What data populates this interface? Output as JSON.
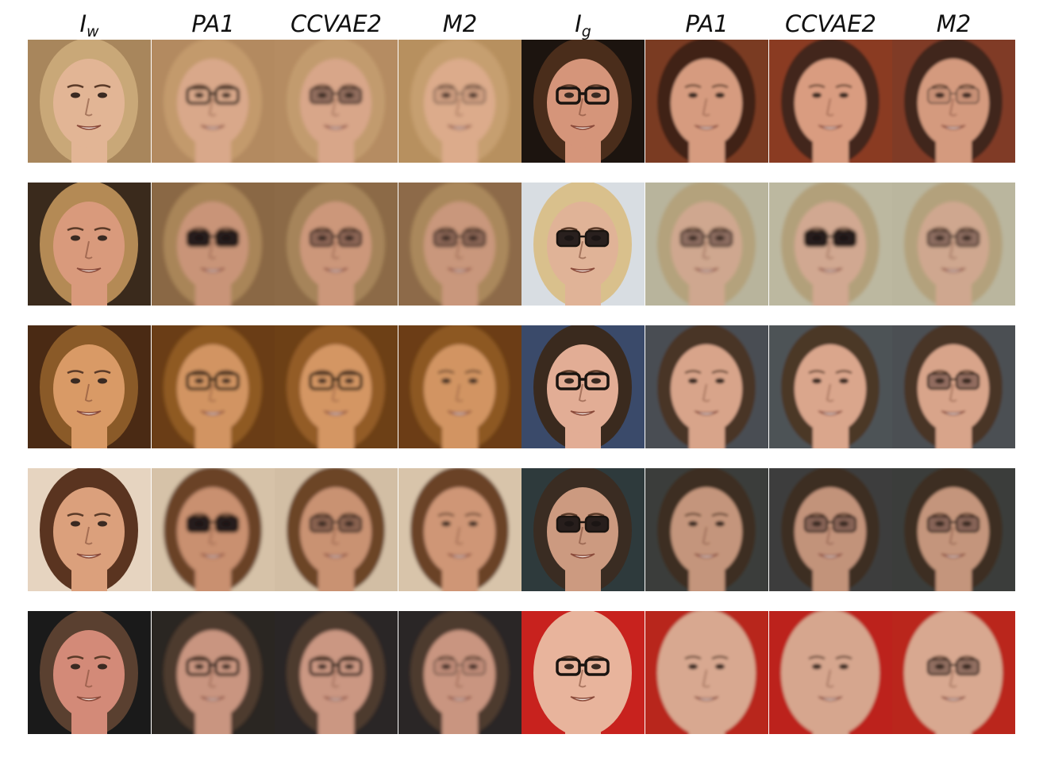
{
  "figure": {
    "column_headers": [
      {
        "main": "I",
        "sub": "w"
      },
      {
        "main": "PA1",
        "sub": ""
      },
      {
        "main": "CCVAE2",
        "sub": ""
      },
      {
        "main": "M2",
        "sub": ""
      },
      {
        "main": "I",
        "sub": "g"
      },
      {
        "main": "PA1",
        "sub": ""
      },
      {
        "main": "CCVAE2",
        "sub": ""
      },
      {
        "main": "M2",
        "sub": ""
      }
    ],
    "rows": [
      {
        "cells": [
          {
            "bg": "#a8865c",
            "hair": "#c9a878",
            "skin": "#e2b595",
            "glasses": "none",
            "blur": 0
          },
          {
            "bg": "#b38a60",
            "hair": "#c39a6c",
            "skin": "#d9a88a",
            "glasses": "dark-frame",
            "blur": 2.2
          },
          {
            "bg": "#b58c62",
            "hair": "#c29b6e",
            "skin": "#d8a689",
            "glasses": "tinted",
            "blur": 2.2
          },
          {
            "bg": "#b7905f",
            "hair": "#c69f70",
            "skin": "#dcab8b",
            "glasses": "thin",
            "blur": 2.4
          },
          {
            "bg": "#1c140f",
            "hair": "#4a2d1b",
            "skin": "#d5957a",
            "glasses": "dark-frame",
            "blur": 0
          },
          {
            "bg": "#7a3a24",
            "hair": "#3f2418",
            "skin": "#d69b7f",
            "glasses": "none",
            "blur": 1.6
          },
          {
            "bg": "#8a3b24",
            "hair": "#43271a",
            "skin": "#d99c80",
            "glasses": "none",
            "blur": 1.6
          },
          {
            "bg": "#803a26",
            "hair": "#40261a",
            "skin": "#d49a7e",
            "glasses": "thin",
            "blur": 1.6
          }
        ]
      },
      {
        "cells": [
          {
            "bg": "#3a2a1c",
            "hair": "#b48a55",
            "skin": "#d99a7c",
            "glasses": "none",
            "blur": 0
          },
          {
            "bg": "#8a6844",
            "hair": "#a98558",
            "skin": "#c99478",
            "glasses": "sunglasses",
            "blur": 2.4
          },
          {
            "bg": "#8c6a46",
            "hair": "#a6845a",
            "skin": "#cc977a",
            "glasses": "tinted",
            "blur": 2.2
          },
          {
            "bg": "#8d6b48",
            "hair": "#aa885c",
            "skin": "#c9977b",
            "glasses": "tinted",
            "blur": 2.4
          },
          {
            "bg": "#d8dde2",
            "hair": "#d9c08c",
            "skin": "#e0b397",
            "glasses": "sunglasses",
            "blur": 0
          },
          {
            "bg": "#b8b49c",
            "hair": "#b4a27c",
            "skin": "#cfa78f",
            "glasses": "tinted",
            "blur": 2.2
          },
          {
            "bg": "#bcb8a0",
            "hair": "#b2a07a",
            "skin": "#d1a891",
            "glasses": "sunglasses",
            "blur": 2.0
          },
          {
            "bg": "#bab69e",
            "hair": "#b3a17c",
            "skin": "#cfa78f",
            "glasses": "tinted",
            "blur": 2.2
          }
        ]
      },
      {
        "cells": [
          {
            "bg": "#4a2a14",
            "hair": "#8a5a28",
            "skin": "#d99a66",
            "glasses": "none",
            "blur": 0
          },
          {
            "bg": "#6a3d16",
            "hair": "#8f5a24",
            "skin": "#d29462",
            "glasses": "dark-frame",
            "blur": 2.0
          },
          {
            "bg": "#6d3f18",
            "hair": "#935c26",
            "skin": "#d49664",
            "glasses": "dark-frame",
            "blur": 2.0
          },
          {
            "bg": "#6c3e18",
            "hair": "#8d5824",
            "skin": "#d29462",
            "glasses": "none",
            "blur": 2.0
          },
          {
            "bg": "#3a4a6a",
            "hair": "#3a2a1e",
            "skin": "#e2ad95",
            "glasses": "dark-frame",
            "blur": 0
          },
          {
            "bg": "#4a4e52",
            "hair": "#4a3526",
            "skin": "#d8a48a",
            "glasses": "none",
            "blur": 1.6
          },
          {
            "bg": "#4e5256",
            "hair": "#4c3728",
            "skin": "#daa68c",
            "glasses": "none",
            "blur": 1.6
          },
          {
            "bg": "#4b4f53",
            "hair": "#4a3526",
            "skin": "#d8a48a",
            "glasses": "tinted",
            "blur": 1.6
          }
        ]
      },
      {
        "cells": [
          {
            "bg": "#e6d4c0",
            "hair": "#5a3420",
            "skin": "#dba07c",
            "glasses": "none",
            "blur": 0
          },
          {
            "bg": "#d6c2a8",
            "hair": "#6a4228",
            "skin": "#c99070",
            "glasses": "sunglasses",
            "blur": 2.4
          },
          {
            "bg": "#d2bea4",
            "hair": "#6c4428",
            "skin": "#c99272",
            "glasses": "tinted",
            "blur": 2.2
          },
          {
            "bg": "#d8c4aa",
            "hair": "#6a4228",
            "skin": "#cf9676",
            "glasses": "none",
            "blur": 2.0
          },
          {
            "bg": "#2e3a3c",
            "hair": "#3a2c22",
            "skin": "#cc9a80",
            "glasses": "sunglasses",
            "blur": 0
          },
          {
            "bg": "#3a3c3a",
            "hair": "#3c2e24",
            "skin": "#c4957c",
            "glasses": "none",
            "blur": 1.8
          },
          {
            "bg": "#3c3e3c",
            "hair": "#3c2e24",
            "skin": "#c2937a",
            "glasses": "tinted",
            "blur": 1.8
          },
          {
            "bg": "#3b3d3b",
            "hair": "#3c2e24",
            "skin": "#c4957c",
            "glasses": "tinted",
            "blur": 1.8
          }
        ]
      },
      {
        "cells": [
          {
            "bg": "#1a1a1a",
            "hair": "#5a4030",
            "skin": "#d38a78",
            "glasses": "none",
            "blur": 0
          },
          {
            "bg": "#2a2624",
            "hair": "#4e3a2e",
            "skin": "#c99580",
            "glasses": "dark-frame",
            "blur": 2.0
          },
          {
            "bg": "#2c2826",
            "hair": "#4e3a2e",
            "skin": "#cb9782",
            "glasses": "dark-frame",
            "blur": 2.0
          },
          {
            "bg": "#2b2725",
            "hair": "#4e3a2e",
            "skin": "#c99580",
            "glasses": "thin",
            "blur": 2.0
          },
          {
            "bg": "#c8221e",
            "hair": "#e8b49c",
            "skin": "#e8b49c",
            "glasses": "dark-frame",
            "blur": 0
          },
          {
            "bg": "#b8261e",
            "hair": "#d8a890",
            "skin": "#d8a890",
            "glasses": "none",
            "blur": 1.8
          },
          {
            "bg": "#bc241c",
            "hair": "#d6a68e",
            "skin": "#d6a68e",
            "glasses": "none",
            "blur": 1.8
          },
          {
            "bg": "#ba251d",
            "hair": "#d8a890",
            "skin": "#d8a890",
            "glasses": "tinted",
            "blur": 1.8
          }
        ]
      }
    ]
  }
}
